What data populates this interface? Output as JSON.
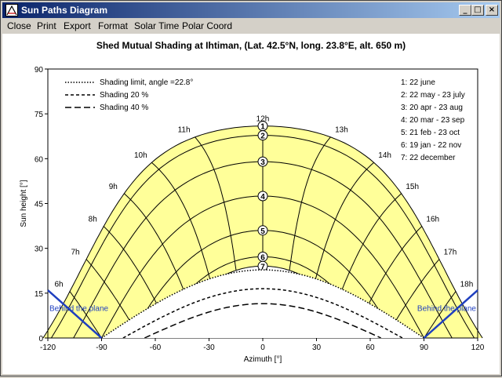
{
  "window": {
    "title": "Sun Paths Diagram",
    "app_icon": "sun-paths-app-icon",
    "controls": {
      "minimize": "_",
      "maximize": "□",
      "close": "×"
    }
  },
  "menu": [
    {
      "label": "Close",
      "name": "menu-close"
    },
    {
      "label": "Print",
      "name": "menu-print"
    },
    {
      "label": "Export",
      "name": "menu-export"
    },
    {
      "label": "Format",
      "name": "menu-format"
    },
    {
      "label": "Solar Time",
      "name": "menu-solar-time"
    },
    {
      "label": "Polar Coord",
      "name": "menu-polar-coord"
    }
  ],
  "chart_data": {
    "type": "line",
    "title": "Shed Mutual Shading at  Ihtiman, (Lat. 42.5°N, long. 23.8°E, alt. 650 m)",
    "xlabel": "Azimuth [°]",
    "ylabel": "Sun height [°]",
    "xlim": [
      -120,
      120
    ],
    "ylim": [
      0,
      90
    ],
    "xticks": [
      "-120",
      "-90",
      "-60",
      "-30",
      "0",
      "30",
      "60",
      "90",
      "120"
    ],
    "yticks": [
      "0",
      "15",
      "30",
      "45",
      "60",
      "75",
      "90"
    ],
    "grid": true,
    "latitude": 42.5,
    "day_curves": [
      {
        "id": "1",
        "label": "1: 22 june",
        "declination": 23.44
      },
      {
        "id": "2",
        "label": "2: 22 may - 23 july",
        "declination": 20.3
      },
      {
        "id": "3",
        "label": "3: 20 apr - 23 aug",
        "declination": 11.5
      },
      {
        "id": "4",
        "label": "4: 20 mar - 23 sep",
        "declination": 0.0
      },
      {
        "id": "5",
        "label": "5: 21 feb - 23 oct",
        "declination": -11.5
      },
      {
        "id": "6",
        "label": "6: 19 jan - 22 nov",
        "declination": -20.3
      },
      {
        "id": "7",
        "label": "7: 22 december",
        "declination": -23.44
      }
    ],
    "hours": [
      "6h",
      "7h",
      "8h",
      "9h",
      "10h",
      "11h",
      "12h",
      "13h",
      "14h",
      "15h",
      "16h",
      "17h",
      "18h"
    ],
    "shading_legend": [
      {
        "label": "Shading limit, angle =22.8°",
        "style": "dotted",
        "peak": 22.8,
        "zero_az": 90
      },
      {
        "label": "Shading 20 %",
        "style": "dashed",
        "peak": 16.5,
        "zero_az": 78
      },
      {
        "label": "Shading 40 %",
        "style": "longdash",
        "peak": 11.5,
        "zero_az": 66
      }
    ],
    "behind_plane_label": "Behind the plane",
    "behind_plane_lines": [
      {
        "x": [
          -120,
          -90
        ],
        "y": [
          16,
          0
        ]
      },
      {
        "x": [
          90,
          120
        ],
        "y": [
          0,
          16
        ]
      }
    ],
    "colors": {
      "area_fill": "#ffff99",
      "grid": "#000000",
      "behind_plane": "#1f3fbf",
      "text": "#000000"
    }
  }
}
